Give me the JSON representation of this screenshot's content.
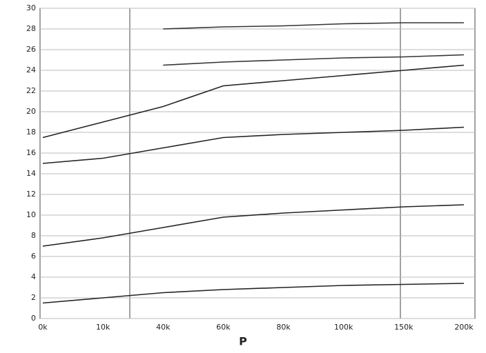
{
  "chart_data": {
    "type": "line",
    "x_label": "P",
    "categories": [
      "0k",
      "10k",
      "40k",
      "60k",
      "80k",
      "100k",
      "150k",
      "200k"
    ],
    "series": [
      {
        "color": "#222222",
        "values": [
          17.5,
          19,
          20.5,
          22.5,
          23,
          23.5,
          24,
          24.5
        ]
      },
      {
        "color": "#222222",
        "values": [
          15,
          15.5,
          16.5,
          17.5,
          17.8,
          18,
          18.2,
          18.5
        ]
      },
      {
        "color": "#222222",
        "values": [
          7,
          7.8,
          8.8,
          9.8,
          10.2,
          10.5,
          10.8,
          11
        ]
      },
      {
        "color": "#222222",
        "values": [
          1.5,
          2,
          2.5,
          2.8,
          3,
          3.2,
          3.3,
          3.4
        ]
      },
      {
        "color": "#333333",
        "values": [
          null,
          null,
          28,
          28.2,
          28.3,
          28.5,
          28.6,
          28.6
        ]
      },
      {
        "color": "#333333",
        "values": [
          null,
          null,
          24.5,
          24.8,
          25,
          25.2,
          25.3,
          25.5
        ]
      }
    ],
    "ylim": [
      0,
      30
    ],
    "yticks": [
      0,
      2,
      4,
      6,
      8,
      10,
      12,
      14,
      16,
      18,
      20,
      22,
      24,
      26,
      28,
      30
    ],
    "grid": true
  }
}
